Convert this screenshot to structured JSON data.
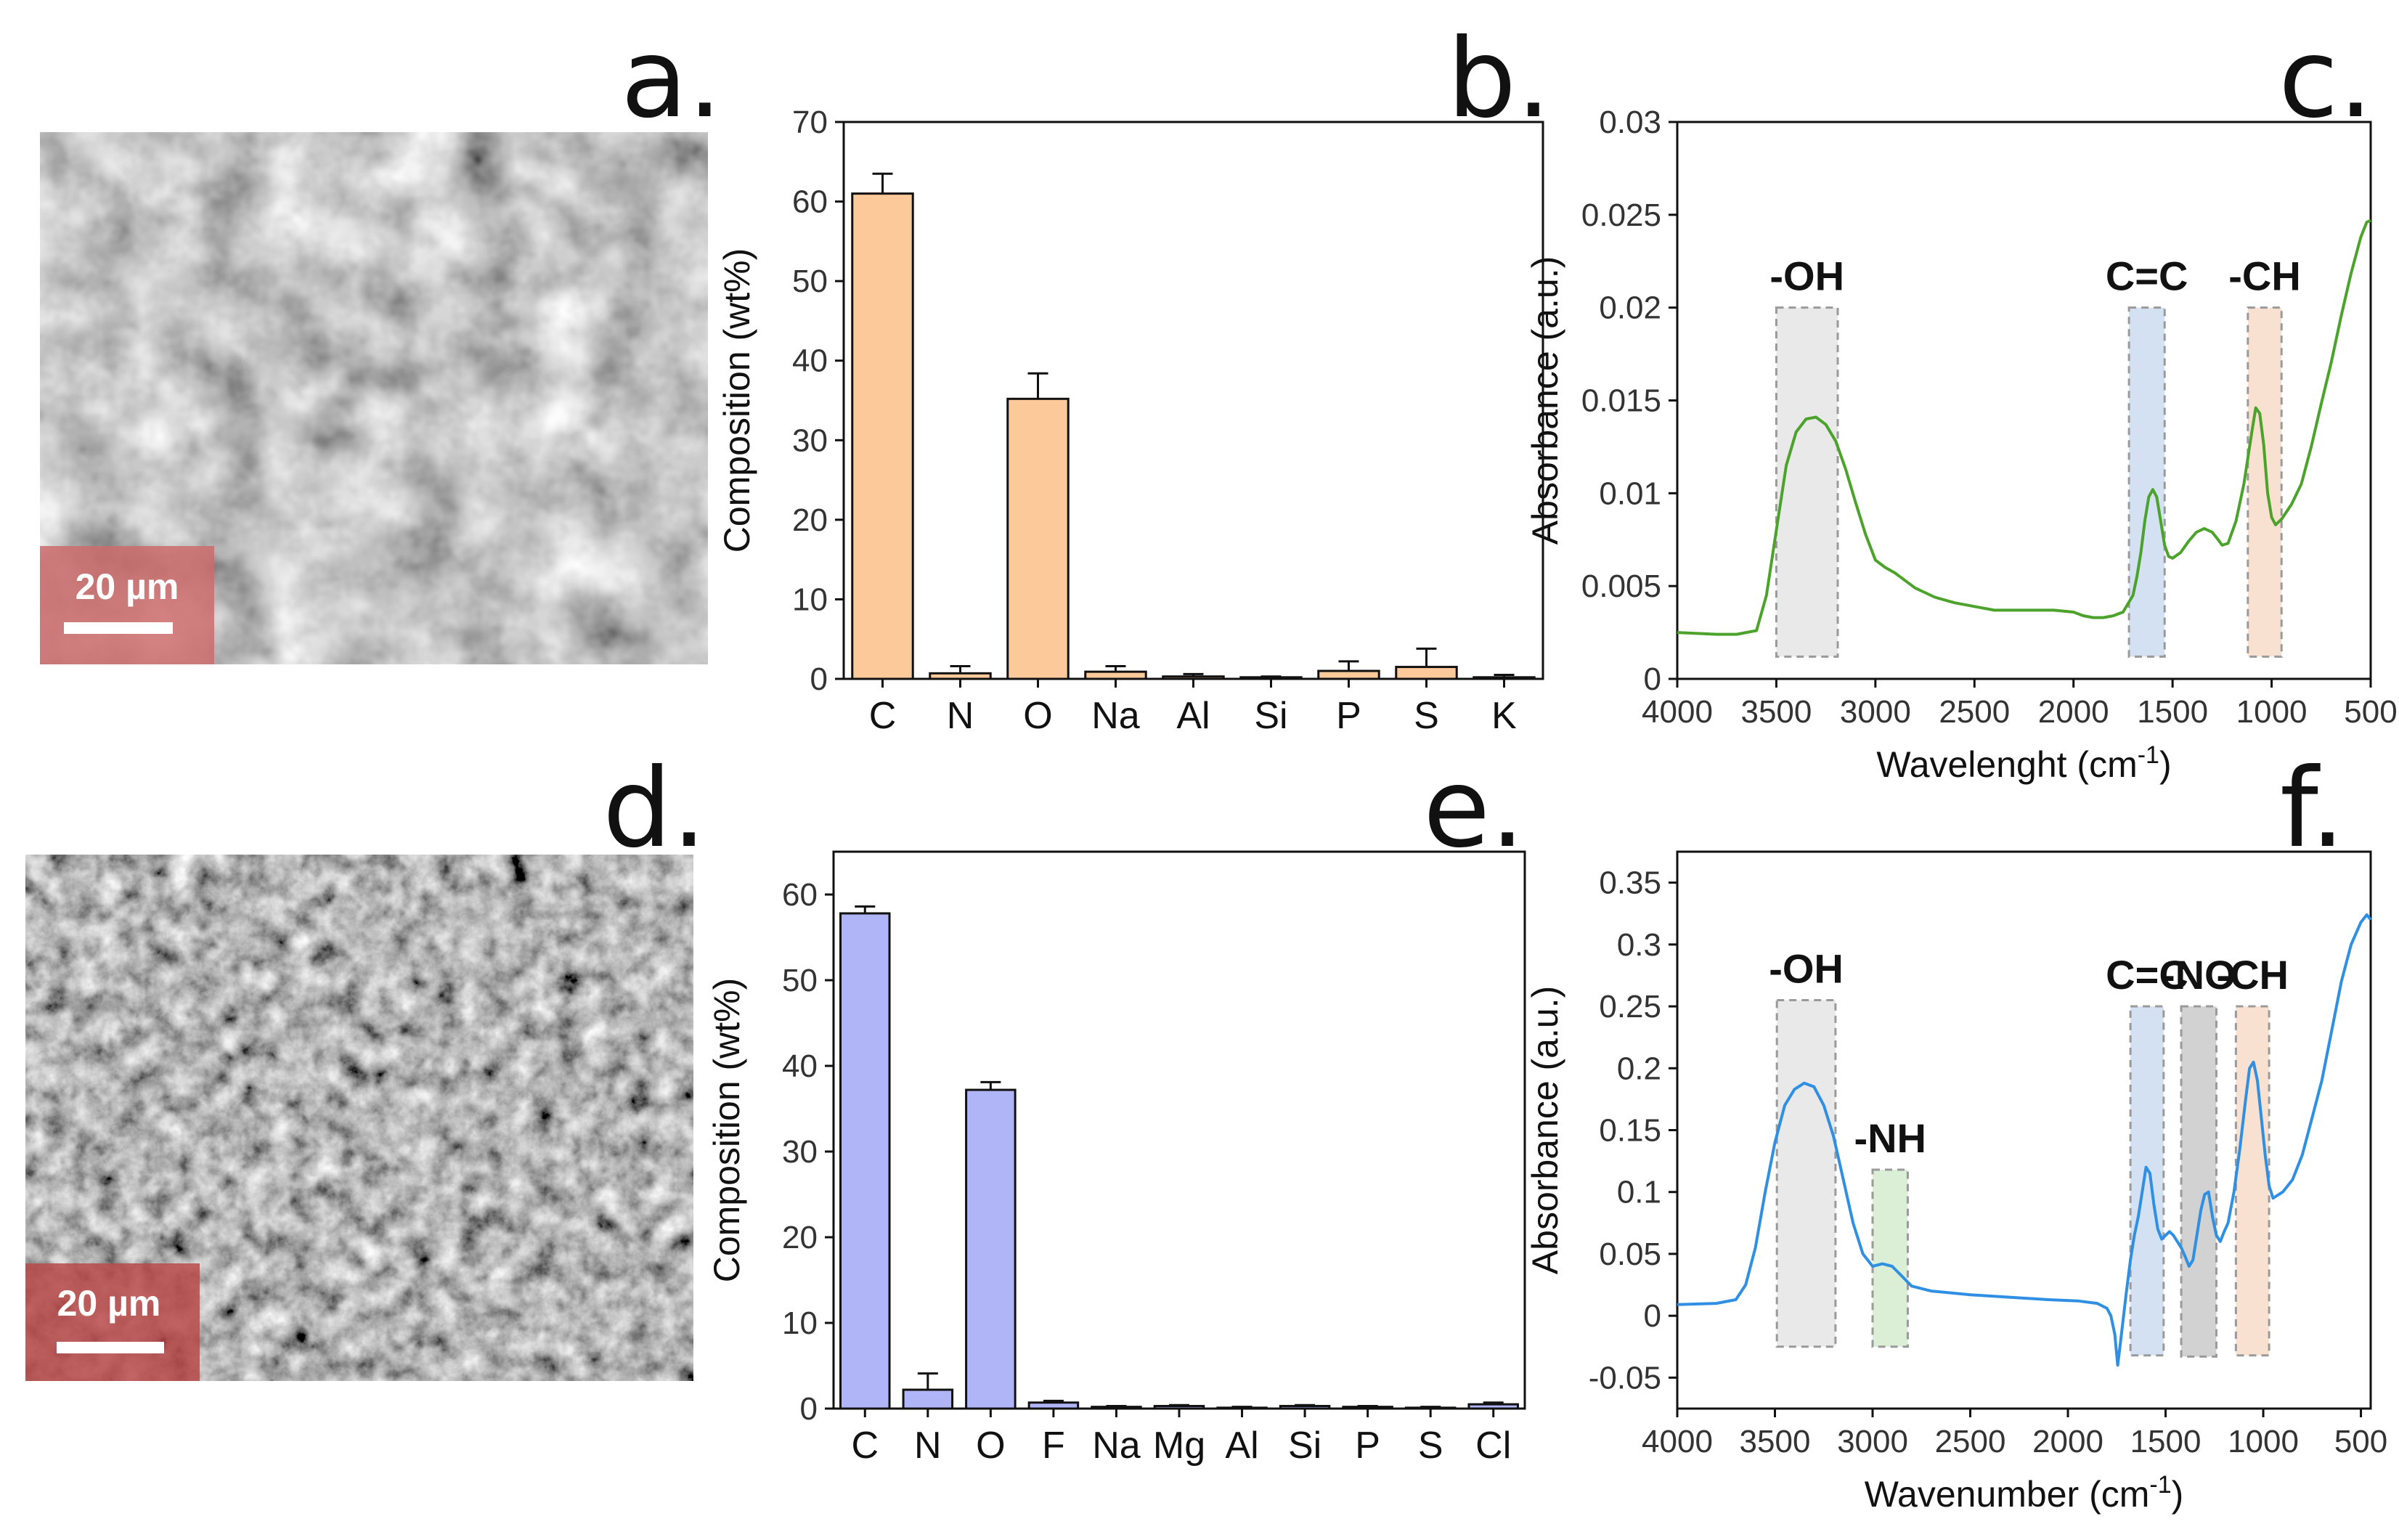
{
  "panel_labels": [
    "a.",
    "b.",
    "c.",
    "d.",
    "e.",
    "f."
  ],
  "sem": {
    "a": {
      "scale_bar": "20 µm"
    },
    "d": {
      "scale_bar": "20 µm"
    }
  },
  "chart_data": [
    {
      "panel": "b",
      "type": "bar",
      "categories": [
        "C",
        "N",
        "O",
        "Na",
        "Al",
        "Si",
        "P",
        "S",
        "K"
      ],
      "values": [
        61.0,
        0.7,
        35.2,
        0.9,
        0.3,
        0.2,
        1.0,
        1.5,
        0.2
      ],
      "errors": [
        2.5,
        0.9,
        3.2,
        0.7,
        0.3,
        0.1,
        1.2,
        2.3,
        0.3
      ],
      "ylabel": "Composition (wt%)",
      "ylim": [
        0,
        70
      ],
      "yticks": [
        0,
        10,
        20,
        30,
        40,
        50,
        60,
        70
      ],
      "color": "#fbc99a"
    },
    {
      "panel": "c",
      "type": "line",
      "xlabel_main": "Wavelenght (cm",
      "xlabel_sup": "-1",
      "xlabel_end": ")",
      "ylabel": "Absorbance (a.u.)",
      "xlim": [
        4000,
        500
      ],
      "ylim": [
        0,
        0.03
      ],
      "xticks": [
        4000,
        3500,
        3000,
        2500,
        2000,
        1500,
        1000,
        500
      ],
      "yticks": [
        0,
        0.005,
        0.01,
        0.015,
        0.02,
        0.025,
        0.03
      ],
      "ytick_labels": [
        "0",
        "0.005",
        "0.01",
        "0.015",
        "0.02",
        "0.025",
        "0.03"
      ],
      "x": [
        4000,
        3800,
        3700,
        3600,
        3550,
        3500,
        3450,
        3400,
        3350,
        3300,
        3250,
        3200,
        3150,
        3100,
        3050,
        3000,
        2950,
        2900,
        2800,
        2700,
        2600,
        2500,
        2400,
        2300,
        2200,
        2100,
        2000,
        1950,
        1900,
        1850,
        1800,
        1750,
        1700,
        1680,
        1660,
        1640,
        1620,
        1600,
        1580,
        1560,
        1540,
        1520,
        1500,
        1460,
        1420,
        1380,
        1340,
        1300,
        1270,
        1250,
        1220,
        1180,
        1140,
        1100,
        1080,
        1060,
        1040,
        1020,
        1000,
        980,
        950,
        900,
        850,
        800,
        750,
        700,
        650,
        600,
        550,
        520,
        500
      ],
      "y": [
        0.0025,
        0.0024,
        0.0024,
        0.0026,
        0.0045,
        0.008,
        0.0115,
        0.0133,
        0.014,
        0.0141,
        0.0137,
        0.0128,
        0.0113,
        0.0095,
        0.0078,
        0.0064,
        0.006,
        0.0057,
        0.0049,
        0.0044,
        0.0041,
        0.0039,
        0.0037,
        0.0037,
        0.0037,
        0.0037,
        0.0036,
        0.0034,
        0.0033,
        0.0033,
        0.0034,
        0.0036,
        0.0045,
        0.0055,
        0.0068,
        0.0085,
        0.0098,
        0.0102,
        0.0098,
        0.0085,
        0.0072,
        0.0066,
        0.0065,
        0.0068,
        0.0074,
        0.0079,
        0.0081,
        0.0079,
        0.0075,
        0.0072,
        0.0073,
        0.0085,
        0.0105,
        0.0133,
        0.0146,
        0.0143,
        0.0126,
        0.01,
        0.0087,
        0.0083,
        0.0086,
        0.0094,
        0.0105,
        0.0125,
        0.0148,
        0.017,
        0.0195,
        0.0218,
        0.0238,
        0.0246,
        0.0247
      ],
      "color": "#4ca32b",
      "bands": [
        {
          "label": "-OH",
          "x1": 3500,
          "x2": 3190,
          "y1": 0.0012,
          "y2": 0.02,
          "color": "#e2e2e2"
        },
        {
          "label": "C=C",
          "x1": 1720,
          "x2": 1540,
          "y1": 0.0012,
          "y2": 0.02,
          "color": "#c4d7ee"
        },
        {
          "label": "-CH",
          "x1": 1120,
          "x2": 950,
          "y1": 0.0012,
          "y2": 0.02,
          "color": "#f7d7c2"
        }
      ]
    },
    {
      "panel": "e",
      "type": "bar",
      "categories": [
        "C",
        "N",
        "O",
        "F",
        "Na",
        "Mg",
        "Al",
        "Si",
        "P",
        "S",
        "Cl"
      ],
      "values": [
        57.8,
        2.2,
        37.2,
        0.7,
        0.2,
        0.3,
        0.1,
        0.3,
        0.2,
        0.1,
        0.5
      ],
      "errors": [
        0.8,
        1.9,
        0.9,
        0.2,
        0.1,
        0.1,
        0.1,
        0.1,
        0.1,
        0.1,
        0.2
      ],
      "ylabel": "Composition (wt%)",
      "ylim": [
        0,
        65
      ],
      "yticks": [
        0,
        10,
        20,
        30,
        40,
        50,
        60
      ],
      "color": "#b0b5f7"
    },
    {
      "panel": "f",
      "type": "line",
      "xlabel_main": "Wavenumber (cm",
      "xlabel_sup": "-1",
      "xlabel_end": ")",
      "ylabel": "Absorbance (a.u.)",
      "xlim": [
        4000,
        450
      ],
      "ylim": [
        -0.075,
        0.375
      ],
      "xticks": [
        4000,
        3500,
        3000,
        2500,
        2000,
        1500,
        1000,
        500
      ],
      "yticks": [
        -0.05,
        0,
        0.05,
        0.1,
        0.15,
        0.2,
        0.25,
        0.3,
        0.35
      ],
      "ytick_labels": [
        "-0.05",
        "0",
        "0.05",
        "0.1",
        "0.15",
        "0.2",
        "0.25",
        "0.3",
        "0.35"
      ],
      "x": [
        4000,
        3800,
        3700,
        3650,
        3600,
        3550,
        3500,
        3450,
        3400,
        3350,
        3300,
        3250,
        3200,
        3150,
        3100,
        3050,
        3000,
        2950,
        2900,
        2850,
        2800,
        2700,
        2500,
        2300,
        2100,
        1950,
        1850,
        1800,
        1780,
        1760,
        1745,
        1730,
        1715,
        1700,
        1680,
        1660,
        1640,
        1620,
        1600,
        1580,
        1560,
        1540,
        1520,
        1500,
        1480,
        1460,
        1440,
        1420,
        1400,
        1380,
        1360,
        1340,
        1320,
        1300,
        1280,
        1260,
        1240,
        1220,
        1200,
        1180,
        1150,
        1120,
        1090,
        1070,
        1050,
        1030,
        1010,
        990,
        970,
        950,
        900,
        850,
        800,
        750,
        700,
        650,
        600,
        550,
        500,
        470,
        450
      ],
      "y": [
        0.009,
        0.01,
        0.013,
        0.025,
        0.055,
        0.1,
        0.14,
        0.17,
        0.183,
        0.188,
        0.185,
        0.17,
        0.145,
        0.11,
        0.075,
        0.05,
        0.04,
        0.042,
        0.04,
        0.032,
        0.024,
        0.02,
        0.017,
        0.015,
        0.013,
        0.012,
        0.01,
        0.006,
        0.0,
        -0.015,
        -0.04,
        -0.02,
        0.0,
        0.02,
        0.045,
        0.065,
        0.08,
        0.1,
        0.12,
        0.115,
        0.09,
        0.07,
        0.062,
        0.065,
        0.068,
        0.065,
        0.06,
        0.055,
        0.048,
        0.04,
        0.045,
        0.065,
        0.085,
        0.098,
        0.1,
        0.08,
        0.065,
        0.06,
        0.068,
        0.075,
        0.1,
        0.135,
        0.175,
        0.2,
        0.205,
        0.19,
        0.16,
        0.13,
        0.105,
        0.095,
        0.1,
        0.11,
        0.13,
        0.16,
        0.19,
        0.23,
        0.27,
        0.3,
        0.318,
        0.324,
        0.32
      ],
      "color": "#2f8fe3",
      "bands": [
        {
          "label": "-OH",
          "x1": 3490,
          "x2": 3190,
          "y1": -0.025,
          "y2": 0.255,
          "color": "#e2e2e2"
        },
        {
          "label": "-NH",
          "x1": 3000,
          "x2": 2820,
          "y1": -0.025,
          "y2": 0.118,
          "color": "#cfeac8"
        },
        {
          "label": "C=C",
          "x1": 1680,
          "x2": 1510,
          "y1": -0.032,
          "y2": 0.25,
          "color": "#c4d7ee"
        },
        {
          "label": "-NO",
          "x1": 1420,
          "x2": 1240,
          "y1": -0.033,
          "y2": 0.25,
          "color": "#c3c3c3"
        },
        {
          "label": "-CH",
          "x1": 1140,
          "x2": 970,
          "y1": -0.032,
          "y2": 0.25,
          "color": "#f7d7c2"
        }
      ]
    }
  ]
}
